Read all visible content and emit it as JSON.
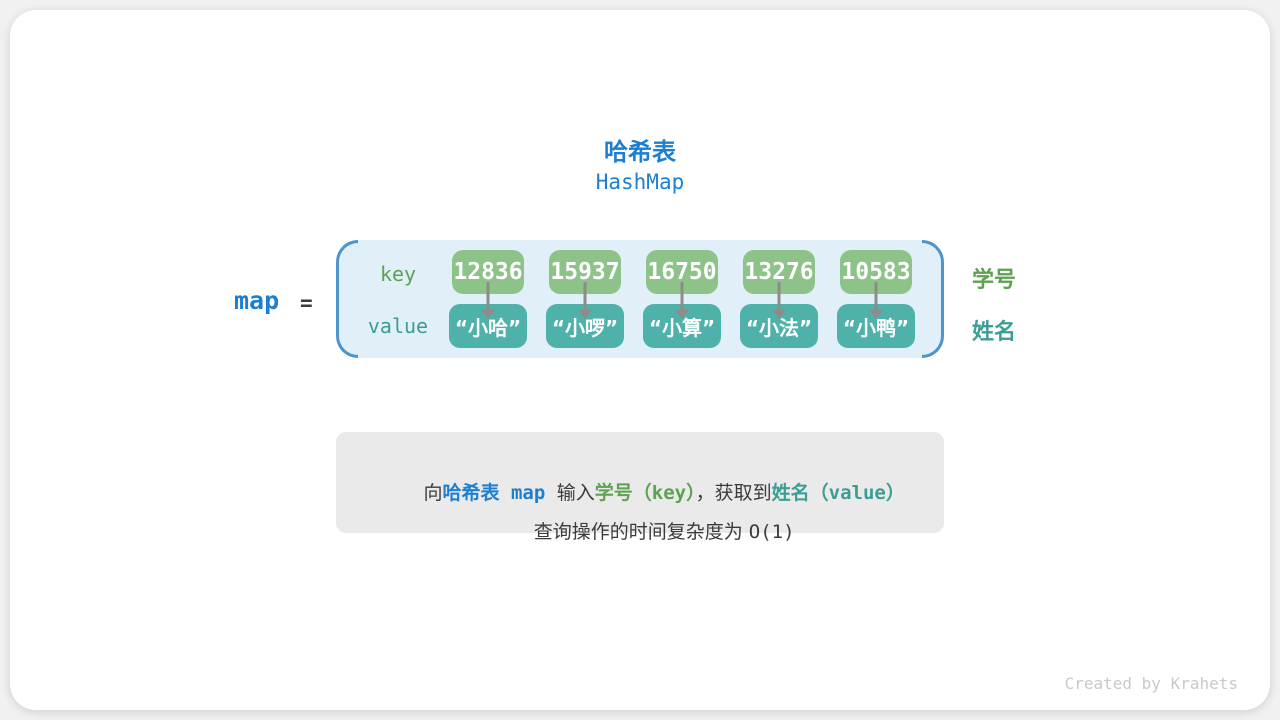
{
  "title": {
    "zh": "哈希表",
    "en": "HashMap"
  },
  "map": {
    "var": "map",
    "equals": "=",
    "key_label": "key",
    "value_label": "value",
    "entries": [
      {
        "key": "12836",
        "value": "“小哈”"
      },
      {
        "key": "15937",
        "value": "“小啰”"
      },
      {
        "key": "16750",
        "value": "“小算”"
      },
      {
        "key": "13276",
        "value": "“小法”"
      },
      {
        "key": "10583",
        "value": "“小鸭”"
      }
    ],
    "key_side_label": "学号",
    "value_side_label": "姓名"
  },
  "note": {
    "line1": [
      {
        "text": "向"
      },
      {
        "text": "哈希表"
      },
      {
        "text": " map "
      },
      {
        "text": "输入"
      },
      {
        "text": "学号"
      },
      {
        "text": "（key）"
      },
      {
        "text": "，获取到"
      },
      {
        "text": "姓名"
      },
      {
        "text": "（value）"
      }
    ],
    "line2": [
      {
        "text": "查询操作的时间复杂度为 "
      },
      {
        "text": "O(1)"
      }
    ]
  },
  "credit": "Created by Krahets",
  "colors": {
    "accent_blue": "#1c7fd2",
    "bracket_blue": "#4e95cc",
    "container_fill": "#e1eff8",
    "key_box_green": "#8dc289",
    "value_box_teal": "#4fb2aa",
    "green_text": "#5fa152",
    "teal_text": "#3b9e94",
    "note_background": "#eaeaea",
    "arrow_gray": "#8c8c8c",
    "text_dark": "#3b3b3b",
    "credit_gray": "#c9c9c9"
  }
}
